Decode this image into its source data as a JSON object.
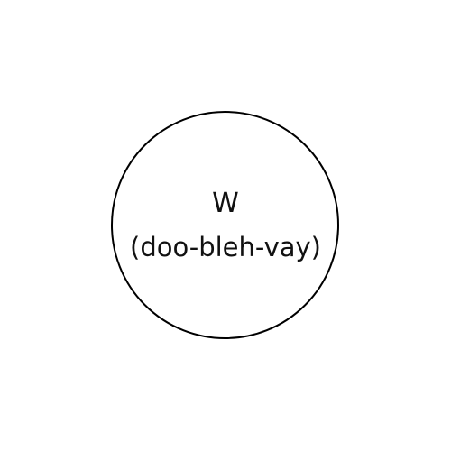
{
  "card": {
    "letter": "W",
    "pronunciation": "(doo-bleh-vay)",
    "stroke_color": "#000000",
    "text_color": "#111111",
    "background": "#ffffff"
  }
}
